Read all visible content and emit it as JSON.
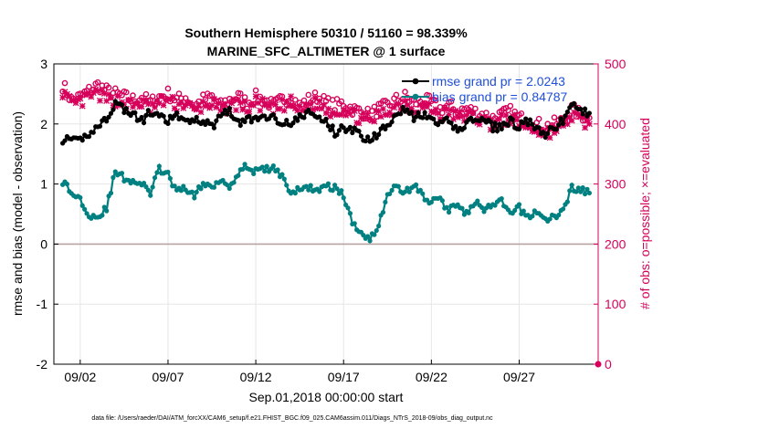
{
  "title_line1": "Southern Hemisphere 50310 / 51160 = 98.339%",
  "title_line2": "MARINE_SFC_ALTIMETER @ 1 surface",
  "xlabel": "Sep.01,2018 00:00:00 start",
  "ylabel_left": "rmse and bias (model - observation)",
  "ylabel_right": "# of obs: o=possible; ×=evaluated",
  "footer": "data file: /Users/raeder/DAI/ATM_forcXX/CAM6_setup/f.e21.FHIST_BGC.f09_025.CAM6assim.011/Diags_NTrS_2018-09/obs_diag_output.nc",
  "colors": {
    "rmse": "#000000",
    "bias": "#008080",
    "obs": "#d6005a",
    "zero_line": "#b9a4a4",
    "legend_text": "#1f4fd8"
  },
  "chart_data": {
    "type": "line",
    "x_tick_labels": [
      "09/02",
      "09/07",
      "09/12",
      "09/17",
      "09/22",
      "09/27"
    ],
    "x_tick_days": [
      2,
      7,
      12,
      17,
      22,
      27
    ],
    "xlim_days": [
      0.5,
      31.5
    ],
    "left_axis": {
      "ylim": [
        -2,
        3
      ],
      "ticks": [
        "-2",
        "-1",
        "0",
        "1",
        "2",
        "3"
      ],
      "tick_values": [
        -2,
        -1,
        0,
        1,
        2,
        3
      ]
    },
    "right_axis": {
      "ylim": [
        0,
        500
      ],
      "ticks": [
        "0",
        "100",
        "200",
        "300",
        "400",
        "500"
      ],
      "tick_values": [
        0,
        100,
        200,
        300,
        400,
        500
      ]
    },
    "grid": true,
    "legend_position": "top-right",
    "legend": [
      "rmse grand pr = 2.0243",
      "bias grand pr = 0.84787"
    ],
    "rmse_anchors": [
      [
        1.0,
        1.75
      ],
      [
        1.5,
        1.7
      ],
      [
        2.0,
        1.72
      ],
      [
        2.5,
        1.85
      ],
      [
        3.0,
        1.95
      ],
      [
        3.5,
        2.1
      ],
      [
        4.0,
        2.35
      ],
      [
        4.5,
        2.25
      ],
      [
        5.0,
        2.15
      ],
      [
        5.5,
        2.05
      ],
      [
        6.0,
        2.2
      ],
      [
        6.5,
        2.1
      ],
      [
        7.0,
        2.05
      ],
      [
        7.5,
        2.15
      ],
      [
        8.0,
        2.0
      ],
      [
        8.5,
        2.1
      ],
      [
        9.0,
        2.05
      ],
      [
        9.5,
        1.95
      ],
      [
        10.0,
        2.15
      ],
      [
        10.5,
        2.25
      ],
      [
        11.0,
        2.0
      ],
      [
        11.5,
        2.1
      ],
      [
        12.0,
        2.05
      ],
      [
        12.5,
        2.15
      ],
      [
        13.0,
        2.1
      ],
      [
        13.5,
        2.05
      ],
      [
        14.0,
        2.0
      ],
      [
        14.5,
        2.1
      ],
      [
        15.0,
        2.2
      ],
      [
        15.5,
        2.1
      ],
      [
        16.0,
        2.05
      ],
      [
        16.5,
        1.85
      ],
      [
        17.0,
        1.95
      ],
      [
        17.5,
        1.9
      ],
      [
        18.0,
        1.8
      ],
      [
        18.5,
        1.75
      ],
      [
        19.0,
        1.85
      ],
      [
        19.5,
        2.0
      ],
      [
        20.0,
        2.2
      ],
      [
        20.5,
        2.25
      ],
      [
        21.0,
        2.1
      ],
      [
        21.5,
        2.15
      ],
      [
        22.0,
        2.05
      ],
      [
        22.5,
        2.0
      ],
      [
        23.0,
        2.05
      ],
      [
        23.5,
        1.9
      ],
      [
        24.0,
        2.0
      ],
      [
        24.5,
        2.1
      ],
      [
        25.0,
        2.05
      ],
      [
        25.5,
        1.95
      ],
      [
        26.0,
        1.95
      ],
      [
        26.5,
        2.05
      ],
      [
        27.0,
        1.95
      ],
      [
        27.5,
        2.05
      ],
      [
        28.0,
        1.9
      ],
      [
        28.5,
        1.8
      ],
      [
        29.0,
        1.95
      ],
      [
        29.5,
        2.05
      ],
      [
        30.0,
        2.35
      ],
      [
        30.5,
        2.2
      ],
      [
        31.0,
        2.18
      ]
    ],
    "bias_anchors": [
      [
        1.0,
        1.05
      ],
      [
        1.5,
        0.85
      ],
      [
        2.0,
        0.75
      ],
      [
        2.5,
        0.5
      ],
      [
        3.0,
        0.45
      ],
      [
        3.5,
        0.6
      ],
      [
        4.0,
        1.2
      ],
      [
        4.5,
        1.1
      ],
      [
        5.0,
        1.05
      ],
      [
        5.5,
        1.0
      ],
      [
        6.0,
        0.85
      ],
      [
        6.5,
        1.25
      ],
      [
        7.0,
        1.15
      ],
      [
        7.5,
        0.85
      ],
      [
        8.0,
        0.95
      ],
      [
        8.5,
        0.8
      ],
      [
        9.0,
        1.0
      ],
      [
        9.5,
        0.95
      ],
      [
        10.0,
        1.1
      ],
      [
        10.5,
        0.95
      ],
      [
        11.0,
        1.2
      ],
      [
        11.5,
        1.3
      ],
      [
        12.0,
        1.2
      ],
      [
        12.5,
        1.25
      ],
      [
        13.0,
        1.25
      ],
      [
        13.5,
        1.15
      ],
      [
        14.0,
        0.85
      ],
      [
        14.5,
        0.9
      ],
      [
        15.0,
        0.95
      ],
      [
        15.5,
        0.9
      ],
      [
        16.0,
        0.95
      ],
      [
        16.5,
        0.95
      ],
      [
        17.0,
        0.8
      ],
      [
        17.5,
        0.35
      ],
      [
        18.0,
        0.2
      ],
      [
        18.5,
        0.1
      ],
      [
        19.0,
        0.3
      ],
      [
        19.5,
        0.85
      ],
      [
        20.0,
        0.95
      ],
      [
        20.5,
        0.85
      ],
      [
        21.0,
        1.0
      ],
      [
        21.5,
        0.8
      ],
      [
        22.0,
        0.7
      ],
      [
        22.5,
        0.75
      ],
      [
        23.0,
        0.55
      ],
      [
        23.5,
        0.7
      ],
      [
        24.0,
        0.5
      ],
      [
        24.5,
        0.7
      ],
      [
        25.0,
        0.55
      ],
      [
        25.5,
        0.65
      ],
      [
        26.0,
        0.7
      ],
      [
        26.5,
        0.5
      ],
      [
        27.0,
        0.6
      ],
      [
        27.5,
        0.45
      ],
      [
        28.0,
        0.55
      ],
      [
        28.5,
        0.4
      ],
      [
        29.0,
        0.45
      ],
      [
        29.5,
        0.55
      ],
      [
        30.0,
        0.95
      ],
      [
        30.5,
        0.9
      ],
      [
        31.0,
        0.85
      ]
    ],
    "possible_anchors": [
      [
        1.0,
        465
      ],
      [
        1.5,
        440
      ],
      [
        2.0,
        445
      ],
      [
        2.5,
        455
      ],
      [
        3.0,
        465
      ],
      [
        3.5,
        455
      ],
      [
        4.0,
        450
      ],
      [
        4.5,
        445
      ],
      [
        5.0,
        440
      ],
      [
        5.5,
        445
      ],
      [
        6.0,
        435
      ],
      [
        6.5,
        445
      ],
      [
        7.0,
        450
      ],
      [
        7.5,
        440
      ],
      [
        8.0,
        445
      ],
      [
        8.5,
        430
      ],
      [
        9.0,
        440
      ],
      [
        9.5,
        445
      ],
      [
        10.0,
        430
      ],
      [
        10.5,
        440
      ],
      [
        11.0,
        445
      ],
      [
        11.5,
        435
      ],
      [
        12.0,
        445
      ],
      [
        12.5,
        440
      ],
      [
        13.0,
        430
      ],
      [
        13.5,
        440
      ],
      [
        14.0,
        445
      ],
      [
        14.5,
        430
      ],
      [
        15.0,
        440
      ],
      [
        15.5,
        445
      ],
      [
        16.0,
        435
      ],
      [
        16.5,
        430
      ],
      [
        17.0,
        435
      ],
      [
        17.5,
        425
      ],
      [
        18.0,
        420
      ],
      [
        18.5,
        415
      ],
      [
        19.0,
        425
      ],
      [
        19.5,
        430
      ],
      [
        20.0,
        440
      ],
      [
        20.5,
        445
      ],
      [
        21.0,
        435
      ],
      [
        21.5,
        440
      ],
      [
        22.0,
        435
      ],
      [
        22.5,
        425
      ],
      [
        23.0,
        430
      ],
      [
        23.5,
        420
      ],
      [
        24.0,
        425
      ],
      [
        24.5,
        420
      ],
      [
        25.0,
        415
      ],
      [
        25.5,
        410
      ],
      [
        26.0,
        415
      ],
      [
        26.5,
        420
      ],
      [
        27.0,
        410
      ],
      [
        27.5,
        405
      ],
      [
        28.0,
        400
      ],
      [
        28.5,
        395
      ],
      [
        29.0,
        400
      ],
      [
        29.5,
        405
      ],
      [
        30.0,
        425
      ],
      [
        30.5,
        415
      ],
      [
        31.0,
        410
      ]
    ],
    "evaluated_anchors": [
      [
        1.0,
        455
      ],
      [
        1.5,
        430
      ],
      [
        2.0,
        435
      ],
      [
        2.5,
        445
      ],
      [
        3.0,
        450
      ],
      [
        3.5,
        440
      ],
      [
        4.0,
        440
      ],
      [
        4.5,
        435
      ],
      [
        5.0,
        430
      ],
      [
        5.5,
        435
      ],
      [
        6.0,
        425
      ],
      [
        6.5,
        435
      ],
      [
        7.0,
        440
      ],
      [
        7.5,
        430
      ],
      [
        8.0,
        435
      ],
      [
        8.5,
        420
      ],
      [
        9.0,
        430
      ],
      [
        9.5,
        435
      ],
      [
        10.0,
        420
      ],
      [
        10.5,
        430
      ],
      [
        11.0,
        435
      ],
      [
        11.5,
        425
      ],
      [
        12.0,
        435
      ],
      [
        12.5,
        430
      ],
      [
        13.0,
        420
      ],
      [
        13.5,
        430
      ],
      [
        14.0,
        435
      ],
      [
        14.5,
        420
      ],
      [
        15.0,
        430
      ],
      [
        15.5,
        435
      ],
      [
        16.0,
        425
      ],
      [
        16.5,
        420
      ],
      [
        17.0,
        425
      ],
      [
        17.5,
        415
      ],
      [
        18.0,
        410
      ],
      [
        18.5,
        405
      ],
      [
        19.0,
        415
      ],
      [
        19.5,
        420
      ],
      [
        20.0,
        430
      ],
      [
        20.5,
        435
      ],
      [
        21.0,
        425
      ],
      [
        21.5,
        430
      ],
      [
        22.0,
        425
      ],
      [
        22.5,
        415
      ],
      [
        23.0,
        420
      ],
      [
        23.5,
        410
      ],
      [
        24.0,
        415
      ],
      [
        24.5,
        410
      ],
      [
        25.0,
        405
      ],
      [
        25.5,
        400
      ],
      [
        26.0,
        405
      ],
      [
        26.5,
        410
      ],
      [
        27.0,
        400
      ],
      [
        27.5,
        395
      ],
      [
        28.0,
        390
      ],
      [
        28.5,
        385
      ],
      [
        29.0,
        390
      ],
      [
        29.5,
        395
      ],
      [
        30.0,
        415
      ],
      [
        30.5,
        405
      ],
      [
        31.0,
        400
      ]
    ]
  }
}
